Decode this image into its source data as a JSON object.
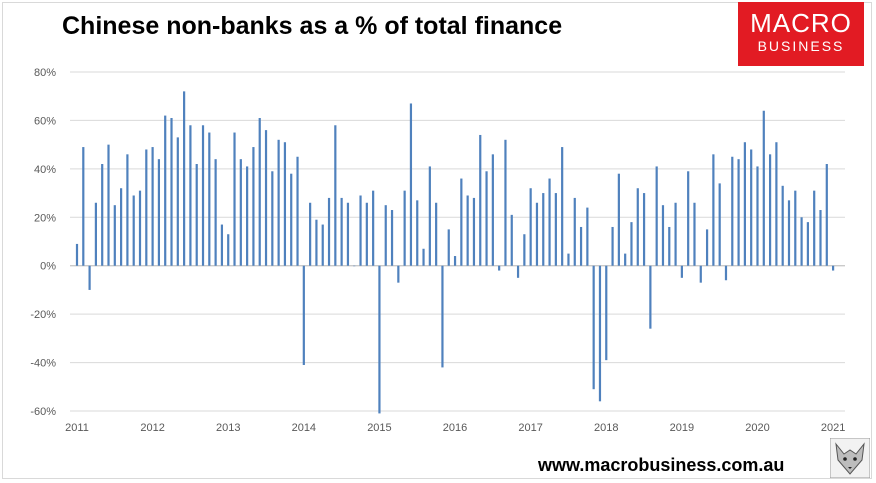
{
  "title": "Chinese non-banks as a % of total finance",
  "logo": {
    "line1": "MACRO",
    "line2": "BUSINESS",
    "color": "#e21b23"
  },
  "footer": {
    "url": "www.macrobusiness.com.au"
  },
  "chart_data": {
    "type": "bar",
    "title": "Chinese non-banks as a % of total finance",
    "xlabel": "",
    "ylabel": "",
    "ylim": [
      -60,
      80
    ],
    "y_ticks": [
      -60,
      -40,
      -20,
      0,
      20,
      40,
      60,
      80
    ],
    "y_tick_labels": [
      "-60%",
      "-40%",
      "-20%",
      "0%",
      "20%",
      "40%",
      "60%",
      "80%"
    ],
    "x_ticks": [
      "2011",
      "2012",
      "2013",
      "2014",
      "2015",
      "2016",
      "2017",
      "2018",
      "2019",
      "2020",
      "2021"
    ],
    "grid": true,
    "bar_color": "#4f81bd",
    "start": "2011-01",
    "frequency": "monthly",
    "values": [
      9,
      49,
      -10,
      26,
      42,
      50,
      25,
      32,
      46,
      29,
      31,
      48,
      49,
      44,
      62,
      61,
      53,
      72,
      58,
      42,
      58,
      55,
      44,
      17,
      13,
      55,
      44,
      41,
      49,
      61,
      56,
      39,
      52,
      51,
      38,
      45,
      -41,
      26,
      19,
      17,
      28,
      58,
      28,
      26,
      0,
      29,
      26,
      31,
      -61,
      25,
      23,
      -7,
      31,
      67,
      27,
      7,
      41,
      26,
      -42,
      15,
      4,
      36,
      29,
      28,
      54,
      39,
      46,
      -2,
      52,
      21,
      -5,
      13,
      32,
      26,
      30,
      36,
      30,
      49,
      5,
      28,
      16,
      24,
      -51,
      -56,
      -39,
      16,
      38,
      5,
      18,
      32,
      30,
      -26,
      41,
      25,
      16,
      26,
      -5,
      39,
      26,
      -7,
      15,
      46,
      34,
      -6,
      45,
      44,
      51,
      48,
      41,
      64,
      46,
      51,
      33,
      27,
      31,
      20,
      18,
      31,
      23,
      42,
      -2
    ]
  }
}
